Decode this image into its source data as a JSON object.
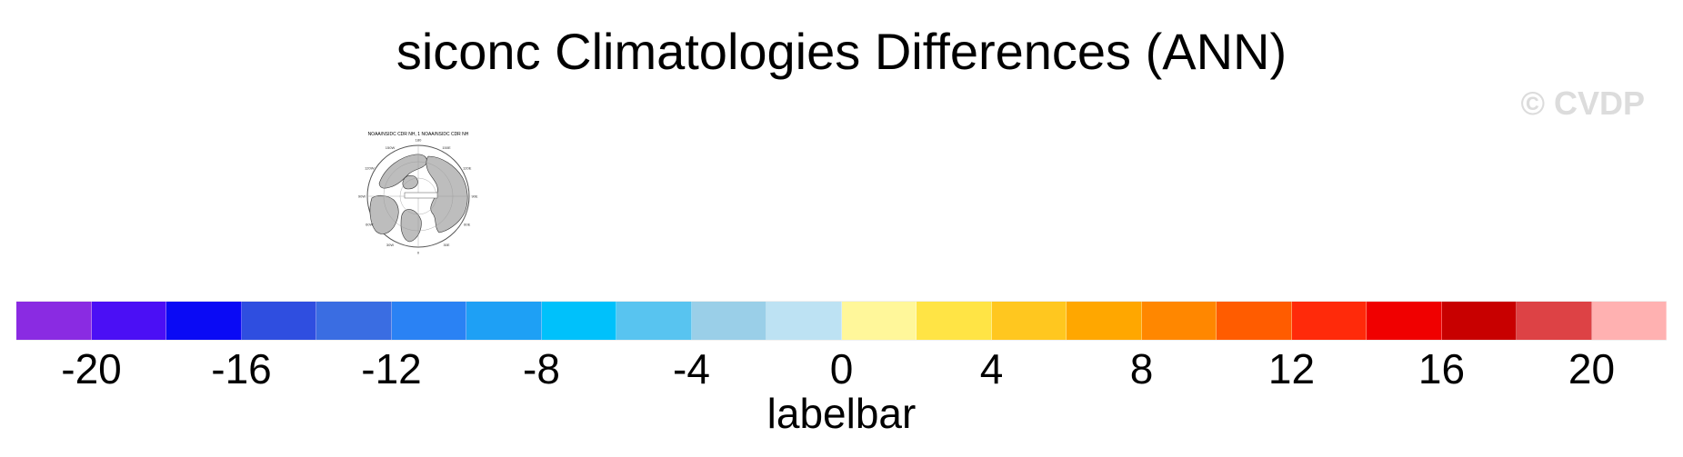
{
  "title": "siconc Climatologies Differences (ANN)",
  "watermark": "© CVDP",
  "panel": {
    "subtitle": "NOAA/NSIDC CDR NH, 1 NOAA/NSIDC CDR NH",
    "longitude_labels": [
      "0",
      "30E",
      "60E",
      "90E",
      "120E",
      "150E",
      "180",
      "150W",
      "120W",
      "90W",
      "60W",
      "30W"
    ],
    "land_color": "#bdbdbd",
    "ocean_color": "#ffffff"
  },
  "labelbar": {
    "label": "labelbar",
    "tick_labels": [
      "-20",
      "-16",
      "-12",
      "-8",
      "-4",
      "0",
      "4",
      "8",
      "12",
      "16",
      "20"
    ],
    "min": -22,
    "max": 22,
    "step": 2,
    "colors": [
      "#8a2be2",
      "#4b0ff5",
      "#0a0af5",
      "#2f4ee0",
      "#3a6de2",
      "#2a82f4",
      "#1ea0f5",
      "#00c1fb",
      "#58c4f0",
      "#9acfe8",
      "#bde2f3",
      "#fff79a",
      "#ffe445",
      "#ffc71f",
      "#ffa700",
      "#ff8700",
      "#ff5c00",
      "#ff2a0a",
      "#f00000",
      "#c80000",
      "#dd4245",
      "#ffb1b1"
    ]
  }
}
